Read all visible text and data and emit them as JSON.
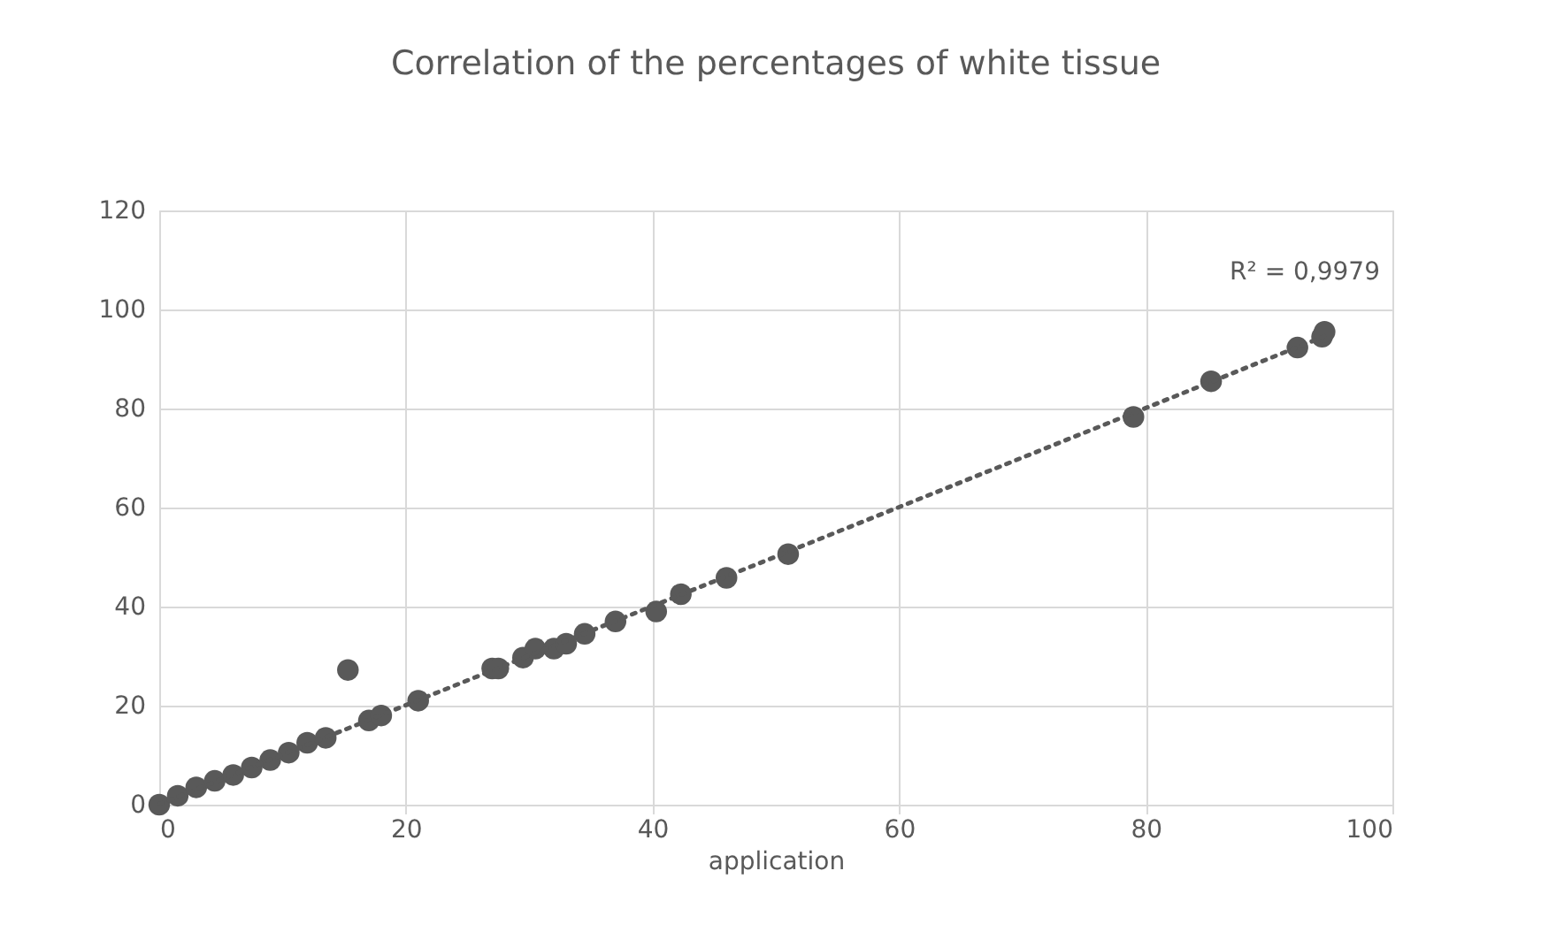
{
  "chart_data": {
    "type": "scatter",
    "title": "Correlation of the percentages of white tissue",
    "xlabel": "application",
    "xlim": [
      0,
      100
    ],
    "xticks": [
      0,
      20,
      40,
      60,
      80,
      100
    ],
    "ylim": [
      0,
      120
    ],
    "yticks": [
      0,
      20,
      40,
      60,
      80,
      100,
      120
    ],
    "grid": true,
    "marker": "circle",
    "annotations": [
      "R² = 0,9979"
    ],
    "series": [
      {
        "color": "#595959",
        "x": [
          0,
          1.5,
          3,
          4.5,
          6,
          7.5,
          9,
          10.5,
          12,
          13.5,
          15.3,
          17,
          18,
          21,
          27,
          27.5,
          29.5,
          30.5,
          32,
          33,
          34.5,
          37,
          40.3,
          42.3,
          46,
          51,
          79,
          85.3,
          92.3,
          94.3,
          94.5
        ],
        "values": [
          0,
          1.8,
          3.5,
          4.8,
          6,
          7.5,
          9,
          10.5,
          12.5,
          13.5,
          27.2,
          17,
          18,
          21,
          27.5,
          27.5,
          29.7,
          31.5,
          31.5,
          32.5,
          34.5,
          37,
          39,
          42.5,
          45.8,
          50.6,
          78.3,
          85.5,
          92.3,
          94.5,
          95.5
        ]
      },
      {
        "type": "line",
        "color": "#595959",
        "line_style": "dotted",
        "marker": "none",
        "x": [
          0,
          94.5
        ],
        "values": [
          0.1,
          94.6
        ]
      }
    ]
  }
}
